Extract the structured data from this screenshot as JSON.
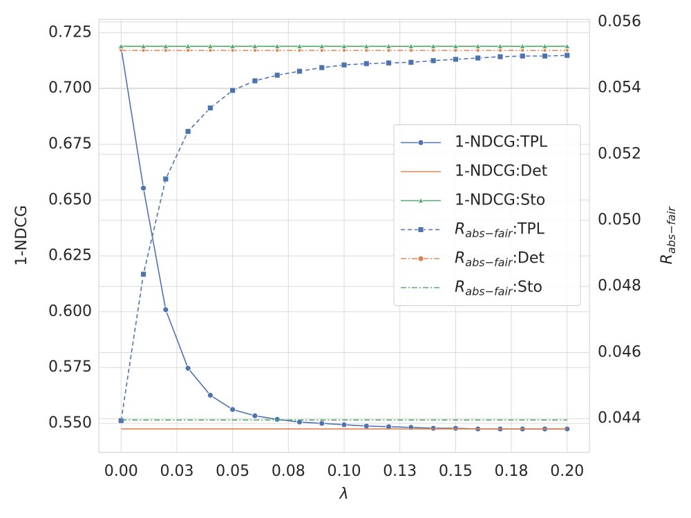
{
  "chart_data": {
    "type": "line",
    "xlabel": "λ",
    "ylabel": "1-NDCG",
    "y2label": "R_{abs−fair}",
    "x": [
      0,
      0.01,
      0.02,
      0.03,
      0.04,
      0.05,
      0.06,
      0.07,
      0.08,
      0.09,
      0.1,
      0.11,
      0.12,
      0.13,
      0.14,
      0.15,
      0.16,
      0.17,
      0.18,
      0.19,
      0.2
    ],
    "xlim": [
      -0.01,
      0.21
    ],
    "xticks": [
      {
        "value": 0,
        "label": "0.00"
      },
      {
        "value": 0.025,
        "label": "0.03"
      },
      0.05,
      {
        "value": 0.075,
        "label": "0.08"
      },
      {
        "value": 0.1,
        "label": "0.10"
      },
      {
        "value": 0.125,
        "label": "0.13"
      },
      0.15,
      {
        "value": 0.175,
        "label": "0.18"
      },
      {
        "value": 0.2,
        "label": "0.20"
      }
    ],
    "ylim": [
      0.537,
      0.731
    ],
    "yticks": [
      {
        "value": 0.55,
        "label": "0.550"
      },
      0.575,
      {
        "value": 0.6,
        "label": "0.600"
      },
      0.625,
      {
        "value": 0.65,
        "label": "0.650"
      },
      0.675,
      {
        "value": 0.7,
        "label": "0.700"
      },
      0.725
    ],
    "y2lim": [
      0.04298,
      0.05608
    ],
    "y2ticks": [
      0.044,
      0.046,
      0.048,
      {
        "value": 0.05,
        "label": "0.050"
      },
      0.052,
      0.054,
      0.056
    ],
    "grid": true,
    "legend": "center right",
    "series": [
      {
        "name": "1-NDCG:TPL",
        "color": "#4c72b0",
        "dash": "solid",
        "marker": "circle",
        "values": [
          0.7183,
          0.6554,
          0.6009,
          0.5747,
          0.5626,
          0.5562,
          0.5534,
          0.5518,
          0.5506,
          0.55,
          0.5494,
          0.5488,
          0.5485,
          0.5482,
          0.5478,
          0.5478,
          0.5475,
          0.5475,
          0.5475,
          0.5475,
          0.5475
        ]
      },
      {
        "name": "1-NDCG:Det",
        "color": "#dd8452",
        "dash": "solid",
        "marker": "none",
        "values": [
          0.5475,
          0.5475,
          0.5475,
          0.5475,
          0.5475,
          0.5475,
          0.5475,
          0.5475,
          0.5475,
          0.5475,
          0.5475,
          0.5475,
          0.5475,
          0.5475,
          0.5475,
          0.5475,
          0.5475,
          0.5475,
          0.5475,
          0.5475,
          0.5475
        ]
      },
      {
        "name": "1-NDCG:Sto",
        "color": "#55a868",
        "dash": "solid",
        "marker": "triangle",
        "values": [
          0.7189,
          0.7189,
          0.7189,
          0.7189,
          0.7189,
          0.7189,
          0.7189,
          0.7189,
          0.7189,
          0.7189,
          0.7189,
          0.7189,
          0.7189,
          0.7189,
          0.7189,
          0.7189,
          0.7189,
          0.7189,
          0.7189,
          0.7189,
          0.7189
        ]
      },
      {
        "name": "R_{abs−fair}:TPL",
        "color": "#4c72b0",
        "dash": "dashed",
        "marker": "square",
        "axis": "y2",
        "values": [
          0.04394,
          0.04837,
          0.05125,
          0.05269,
          0.0534,
          0.05393,
          0.05422,
          0.05439,
          0.05451,
          0.05462,
          0.0547,
          0.05474,
          0.05476,
          0.05478,
          0.05483,
          0.05487,
          0.05491,
          0.05495,
          0.05497,
          0.05497,
          0.05499
        ]
      },
      {
        "name": "R_{abs−fair}:Det",
        "color": "#dd8452",
        "dash": "dashdot",
        "marker": "circle",
        "axis": "y2",
        "values": [
          0.05514,
          0.05514,
          0.05514,
          0.05514,
          0.05514,
          0.05514,
          0.05514,
          0.05514,
          0.05514,
          0.05514,
          0.05514,
          0.05514,
          0.05514,
          0.05514,
          0.05514,
          0.05514,
          0.05514,
          0.05514,
          0.05514,
          0.05514,
          0.05514
        ]
      },
      {
        "name": "R_{abs−fair}:Sto",
        "color": "#55a868",
        "dash": "dashdot",
        "marker": "none",
        "axis": "y2",
        "values": [
          0.04396,
          0.04396,
          0.04396,
          0.04396,
          0.04396,
          0.04396,
          0.04396,
          0.04396,
          0.04396,
          0.04396,
          0.04396,
          0.04396,
          0.04396,
          0.04396,
          0.04396,
          0.04396,
          0.04396,
          0.04396,
          0.04396,
          0.04396,
          0.04396
        ]
      }
    ]
  }
}
